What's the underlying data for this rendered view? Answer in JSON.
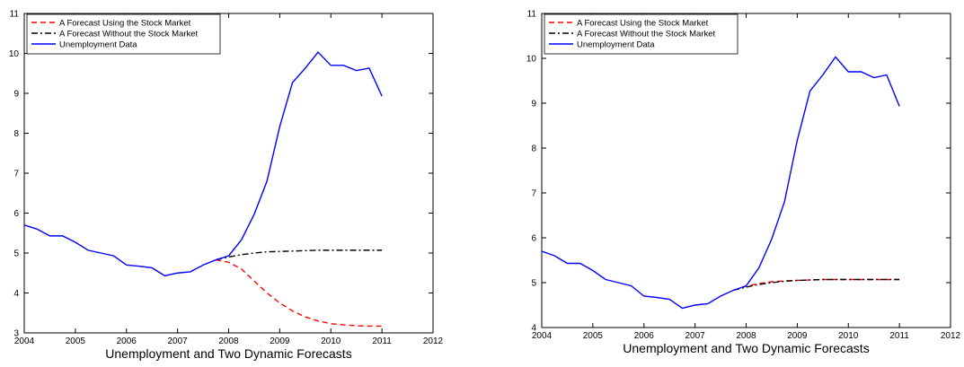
{
  "chart_data": [
    {
      "type": "line",
      "xlabel": "Unemployment and Two Dynamic Forecasts",
      "x": [
        2004,
        2004.25,
        2004.5,
        2004.75,
        2005,
        2005.25,
        2005.5,
        2005.75,
        2006,
        2006.25,
        2006.5,
        2006.75,
        2007,
        2007.25,
        2007.5,
        2007.75,
        2008,
        2008.25,
        2008.5,
        2008.75,
        2009,
        2009.25,
        2009.5,
        2009.75,
        2010,
        2010.25,
        2010.5,
        2010.75,
        2011
      ],
      "xlim": [
        2004,
        2012
      ],
      "xticks": [
        2004,
        2005,
        2006,
        2007,
        2008,
        2009,
        2010,
        2011,
        2012
      ],
      "ylim": [
        3,
        11
      ],
      "yticks": [
        3,
        4,
        5,
        6,
        7,
        8,
        9,
        10,
        11
      ],
      "legend": "upper left",
      "series": [
        {
          "name": "A Forecast Using the Stock Market",
          "color": "#ff0000",
          "line_style": "dashed",
          "values": [
            null,
            null,
            null,
            null,
            null,
            null,
            null,
            null,
            null,
            null,
            null,
            null,
            null,
            null,
            null,
            4.83,
            4.77,
            4.6,
            4.3,
            4.0,
            3.75,
            3.55,
            3.4,
            3.3,
            3.23,
            3.2,
            3.18,
            3.17,
            3.17
          ]
        },
        {
          "name": "A Forecast Without the Stock Market",
          "color": "#000000",
          "line_style": "dashdot",
          "values": [
            null,
            null,
            null,
            null,
            null,
            null,
            null,
            null,
            null,
            null,
            null,
            null,
            null,
            null,
            null,
            4.83,
            4.9,
            4.96,
            5.0,
            5.03,
            5.04,
            5.05,
            5.06,
            5.07,
            5.07,
            5.07,
            5.07,
            5.07,
            5.07
          ]
        },
        {
          "name": "Unemployment Data",
          "color": "#0000ff",
          "line_style": "solid",
          "values": [
            5.7,
            5.6,
            5.43,
            5.43,
            5.27,
            5.07,
            5.0,
            4.93,
            4.7,
            4.67,
            4.63,
            4.43,
            4.5,
            4.53,
            4.7,
            4.83,
            4.93,
            5.33,
            5.97,
            6.8,
            8.17,
            9.27,
            9.63,
            10.03,
            9.7,
            9.7,
            9.57,
            9.63,
            8.93
          ]
        }
      ]
    },
    {
      "type": "line",
      "xlabel": "Unemployment and Two Dynamic Forecasts",
      "x": [
        2004,
        2004.25,
        2004.5,
        2004.75,
        2005,
        2005.25,
        2005.5,
        2005.75,
        2006,
        2006.25,
        2006.5,
        2006.75,
        2007,
        2007.25,
        2007.5,
        2007.75,
        2008,
        2008.25,
        2008.5,
        2008.75,
        2009,
        2009.25,
        2009.5,
        2009.75,
        2010,
        2010.25,
        2010.5,
        2010.75,
        2011
      ],
      "xlim": [
        2004,
        2012
      ],
      "xticks": [
        2004,
        2005,
        2006,
        2007,
        2008,
        2009,
        2010,
        2011,
        2012
      ],
      "ylim": [
        4,
        11
      ],
      "yticks": [
        4,
        5,
        6,
        7,
        8,
        9,
        10,
        11
      ],
      "legend": "upper left",
      "series": [
        {
          "name": "A Forecast Using the Stock Market",
          "color": "#ff0000",
          "line_style": "dashed",
          "values": [
            null,
            null,
            null,
            null,
            null,
            null,
            null,
            null,
            null,
            null,
            null,
            null,
            null,
            null,
            null,
            4.83,
            4.92,
            4.98,
            5.02,
            5.04,
            5.05,
            5.06,
            5.07,
            5.07,
            5.07,
            5.07,
            5.07,
            5.07,
            5.07
          ]
        },
        {
          "name": "A Forecast Without the Stock Market",
          "color": "#000000",
          "line_style": "dashdot",
          "values": [
            null,
            null,
            null,
            null,
            null,
            null,
            null,
            null,
            null,
            null,
            null,
            null,
            null,
            null,
            null,
            4.83,
            4.9,
            4.96,
            5.0,
            5.03,
            5.05,
            5.06,
            5.07,
            5.07,
            5.07,
            5.07,
            5.07,
            5.07,
            5.07
          ]
        },
        {
          "name": "Unemployment Data",
          "color": "#0000ff",
          "line_style": "solid",
          "values": [
            5.7,
            5.6,
            5.43,
            5.43,
            5.27,
            5.07,
            5.0,
            4.93,
            4.7,
            4.67,
            4.63,
            4.43,
            4.5,
            4.53,
            4.7,
            4.83,
            4.93,
            5.33,
            5.97,
            6.8,
            8.17,
            9.27,
            9.63,
            10.03,
            9.7,
            9.7,
            9.57,
            9.63,
            8.93
          ]
        }
      ]
    }
  ]
}
